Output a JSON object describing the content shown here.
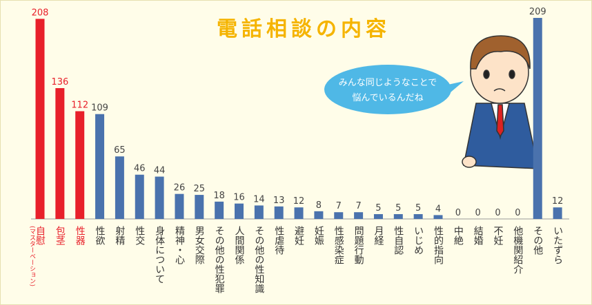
{
  "chart_data": {
    "type": "bar",
    "title": "電話相談の内容",
    "annotations": [
      "みんな同じようなことで",
      "悩んでいるんだね"
    ],
    "categories": [
      "自慰",
      "包茎",
      "性器",
      "性欲",
      "射精",
      "性交",
      "身体について",
      "精神・心",
      "男女交際",
      "その他の性犯罪",
      "人間関係",
      "その他の性知識",
      "性虐待",
      "避妊",
      "妊娠",
      "性感染症",
      "問題行動",
      "月経",
      "性自認",
      "いじめ",
      "性的指向",
      "中絶",
      "結婚",
      "不妊",
      "他機関紹介",
      "その他",
      "いたずら"
    ],
    "category_notes": [
      "(マスターベーション)",
      null,
      null,
      null,
      null,
      null,
      null,
      null,
      null,
      null,
      null,
      null,
      null,
      null,
      null,
      null,
      null,
      null,
      null,
      null,
      null,
      null,
      null,
      null,
      null,
      null,
      null
    ],
    "values": [
      208,
      136,
      112,
      109,
      65,
      46,
      44,
      26,
      25,
      18,
      16,
      14,
      13,
      12,
      8,
      7,
      7,
      5,
      5,
      5,
      4,
      0,
      0,
      0,
      0,
      209,
      12
    ],
    "colors": [
      "#e8202a",
      "#e8202a",
      "#e8202a",
      "#4a72ad",
      "#4a72ad",
      "#4a72ad",
      "#4a72ad",
      "#4a72ad",
      "#4a72ad",
      "#4a72ad",
      "#4a72ad",
      "#4a72ad",
      "#4a72ad",
      "#4a72ad",
      "#4a72ad",
      "#4a72ad",
      "#4a72ad",
      "#4a72ad",
      "#4a72ad",
      "#4a72ad",
      "#4a72ad",
      "#4a72ad",
      "#4a72ad",
      "#4a72ad",
      "#4a72ad",
      "#4a72ad",
      "#4a72ad"
    ]
  }
}
